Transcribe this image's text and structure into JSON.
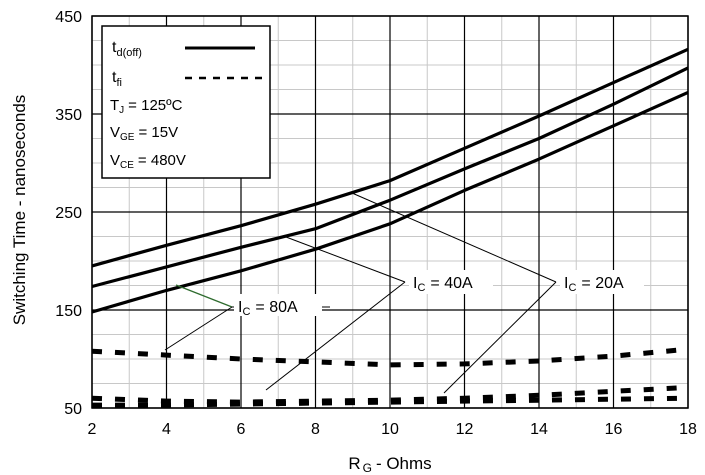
{
  "chart_data": {
    "type": "line",
    "xlabel_main": "R",
    "xlabel_sub": "G",
    "xlabel_rest": "- Ohms",
    "ylabel": "Switching Time - nanoseconds",
    "xlim": [
      2,
      18
    ],
    "ylim": [
      50,
      450
    ],
    "x_ticks": [
      2,
      4,
      6,
      8,
      10,
      12,
      14,
      16,
      18
    ],
    "y_ticks": [
      50,
      150,
      250,
      350,
      450
    ],
    "grid": true,
    "x": [
      2,
      4,
      6,
      8,
      10,
      12,
      14,
      16,
      18
    ],
    "series": [
      {
        "kind": "td_off",
        "ic": "20A",
        "values": [
          195,
          216,
          236,
          258,
          282,
          315,
          348,
          382,
          416
        ]
      },
      {
        "kind": "td_off",
        "ic": "40A",
        "values": [
          174,
          194,
          214,
          233,
          262,
          294,
          325,
          360,
          397
        ]
      },
      {
        "kind": "td_off",
        "ic": "80A",
        "values": [
          148,
          170,
          190,
          212,
          238,
          272,
          304,
          338,
          372
        ]
      },
      {
        "kind": "t_fi",
        "ic": "80A",
        "values": [
          108,
          104,
          100,
          97,
          94,
          95,
          98,
          103,
          110
        ]
      },
      {
        "kind": "t_fi",
        "ic": "40A",
        "values": [
          60,
          57,
          56,
          57,
          58,
          60,
          63,
          67,
          71
        ]
      },
      {
        "kind": "t_fi",
        "ic": "20A",
        "values": [
          53,
          53,
          54,
          55,
          56,
          57,
          58,
          59,
          60
        ]
      }
    ],
    "legend": {
      "placement": "top-left",
      "td_main": "t",
      "td_sub": "d(off)",
      "tf_main": "t",
      "tf_sub": "fi",
      "tj_main": "T",
      "tj_sub": "J",
      "tj_rest": "= 125ºC",
      "vge_main": "V",
      "vge_sub": "GE",
      "vge_rest": "= 15V",
      "vce_main": "V",
      "vce_sub": "CE",
      "vce_rest": "= 480V"
    },
    "annotations": {
      "ic80_main": "I",
      "ic80_sub": "C",
      "ic80_rest": "= 80A",
      "ic40_main": "I",
      "ic40_sub": "C",
      "ic40_rest": "= 40A",
      "ic20_main": "I",
      "ic20_sub": "C",
      "ic20_rest": "= 20A"
    }
  }
}
